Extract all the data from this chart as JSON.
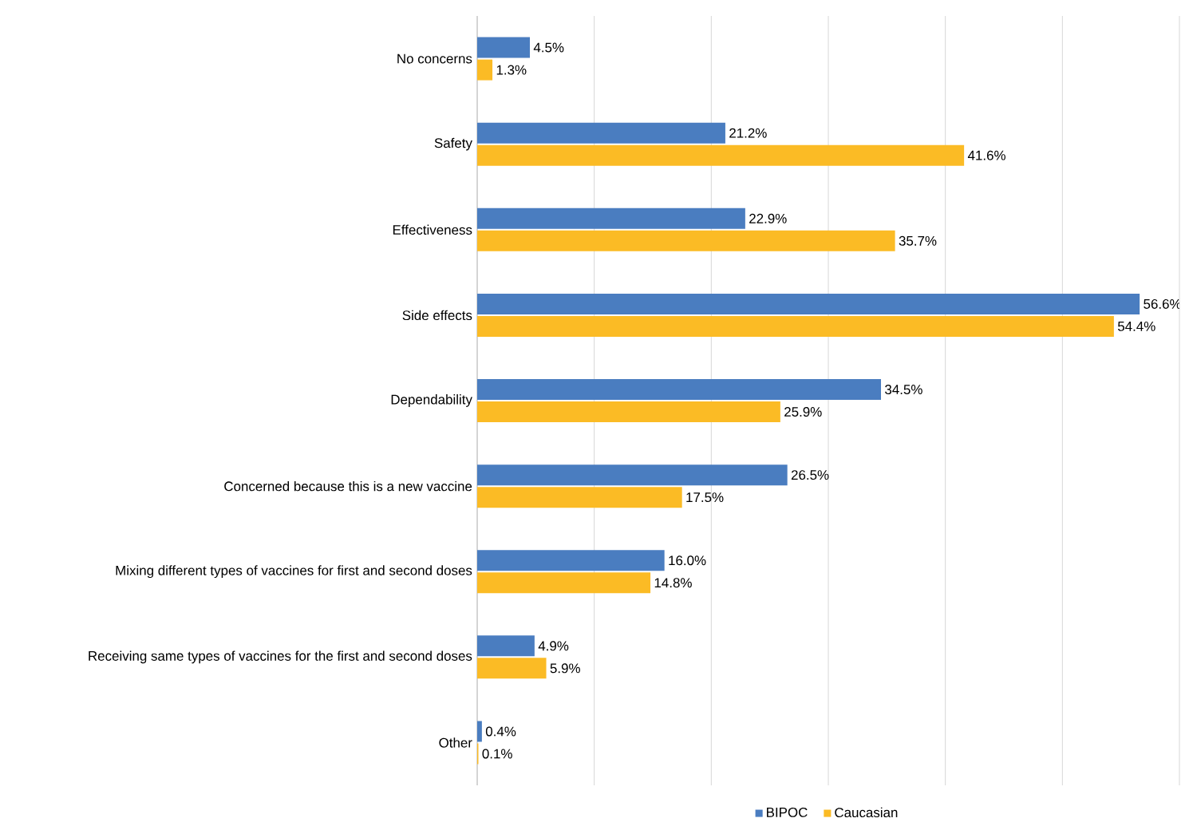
{
  "chart_data": {
    "type": "bar",
    "orientation": "horizontal",
    "categories": [
      "No concerns",
      "Safety",
      "Effectiveness",
      "Side effects",
      "Dependability",
      "Concerned because this is a new vaccine",
      "Mixing different types of vaccines for first and second doses",
      "Receiving same types of vaccines for the first and second doses",
      "Other"
    ],
    "series": [
      {
        "name": "BIPOC",
        "color": "#4a7dc0",
        "values": [
          4.5,
          21.2,
          22.9,
          56.6,
          34.5,
          26.5,
          16.0,
          4.9,
          0.4
        ],
        "value_labels": [
          "4.5%",
          "21.2%",
          "22.9%",
          "56.6%",
          "34.5%",
          "26.5%",
          "16.0%",
          "4.9%",
          "0.4%"
        ]
      },
      {
        "name": "Caucasian",
        "color": "#fbbb25",
        "values": [
          1.3,
          41.6,
          35.7,
          54.4,
          25.9,
          17.5,
          14.8,
          5.9,
          0.1
        ],
        "value_labels": [
          "1.3%",
          "41.6%",
          "35.7%",
          "54.4%",
          "25.9%",
          "17.5%",
          "14.8%",
          "5.9%",
          "0.1%"
        ]
      }
    ],
    "xlim": [
      0,
      60
    ],
    "xticks": [
      0,
      10,
      20,
      30,
      40,
      50,
      60
    ],
    "grid": "x",
    "legend": "bottom",
    "tick_labels": "y"
  }
}
